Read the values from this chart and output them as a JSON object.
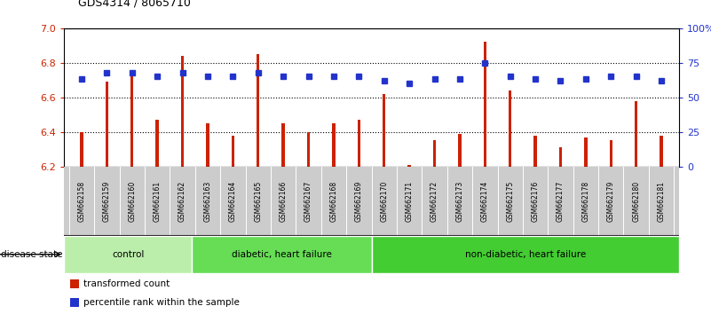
{
  "title": "GDS4314 / 8065710",
  "samples": [
    "GSM662158",
    "GSM662159",
    "GSM662160",
    "GSM662161",
    "GSM662162",
    "GSM662163",
    "GSM662164",
    "GSM662165",
    "GSM662166",
    "GSM662167",
    "GSM662168",
    "GSM662169",
    "GSM662170",
    "GSM662171",
    "GSM662172",
    "GSM662173",
    "GSM662174",
    "GSM662175",
    "GSM662176",
    "GSM662177",
    "GSM662178",
    "GSM662179",
    "GSM662180",
    "GSM662181"
  ],
  "transformed_count": [
    6.4,
    6.69,
    6.76,
    6.47,
    6.84,
    6.45,
    6.38,
    6.85,
    6.45,
    6.4,
    6.45,
    6.47,
    6.62,
    6.21,
    6.35,
    6.39,
    6.92,
    6.64,
    6.38,
    6.31,
    6.37,
    6.35,
    6.58,
    6.38
  ],
  "percentile_rank": [
    63,
    68,
    68,
    65,
    68,
    65,
    65,
    68,
    65,
    65,
    65,
    65,
    62,
    60,
    63,
    63,
    75,
    65,
    63,
    62,
    63,
    65,
    65,
    62
  ],
  "groups": [
    {
      "label": "control",
      "start": 0,
      "end": 5,
      "color": "#bbeeaa"
    },
    {
      "label": "diabetic, heart failure",
      "start": 5,
      "end": 12,
      "color": "#66dd55"
    },
    {
      "label": "non-diabetic, heart failure",
      "start": 12,
      "end": 24,
      "color": "#44cc33"
    }
  ],
  "ylim_left": [
    6.2,
    7.0
  ],
  "ylim_right": [
    0,
    100
  ],
  "yticks_left": [
    6.2,
    6.4,
    6.6,
    6.8,
    7.0
  ],
  "yticks_right": [
    0,
    25,
    50,
    75,
    100
  ],
  "ytick_labels_right": [
    "0",
    "25",
    "50",
    "75",
    "100%"
  ],
  "bar_color": "#cc2200",
  "dot_color": "#2233cc",
  "bar_width": 0.12,
  "dot_size": 5,
  "grid_color": "#000000",
  "background_color": "#ffffff",
  "tick_label_color_left": "#cc2200",
  "tick_label_color_right": "#2233cc"
}
